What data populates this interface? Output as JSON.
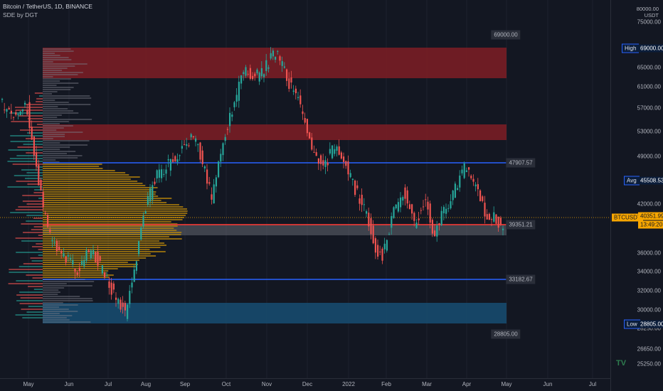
{
  "header": {
    "symbol_line": "Bitcoin / TetherUS, 1D, BINANCE",
    "indicator_line": "SDE by DGT"
  },
  "price_axis": {
    "currency": "USDT",
    "top_value": "80000.00",
    "ticks": [
      {
        "value": 75000,
        "label": "75000.00"
      },
      {
        "value": 65000,
        "label": "65000.00"
      },
      {
        "value": 61000,
        "label": "61000.00"
      },
      {
        "value": 57000,
        "label": "57000.00"
      },
      {
        "value": 53000,
        "label": "53000.00"
      },
      {
        "value": 49000,
        "label": "49000.00"
      },
      {
        "value": 42000,
        "label": "42000.00"
      },
      {
        "value": 36000,
        "label": "36000.00"
      },
      {
        "value": 34000,
        "label": "34000.00"
      },
      {
        "value": 32000,
        "label": "32000.00"
      },
      {
        "value": 30000,
        "label": "30000.00"
      },
      {
        "value": 28250,
        "label": "28250.00"
      },
      {
        "value": 26650,
        "label": "26650.00"
      },
      {
        "value": 25250,
        "label": "25250.00"
      }
    ],
    "high": {
      "label": "High",
      "value": "69000.00"
    },
    "avg": {
      "label": "Avg",
      "value": "45508.53"
    },
    "low": {
      "label": "Low",
      "value": "28805.00"
    },
    "symbol_tag": {
      "label": "BTCUSDT",
      "price": "40351.99",
      "countdown": "13:49:20"
    }
  },
  "time_axis": {
    "labels": [
      "May",
      "Jun",
      "Jul",
      "Aug",
      "Sep",
      "Oct",
      "Nov",
      "Dec",
      "2022",
      "Feb",
      "Mar",
      "Apr",
      "May",
      "Jun",
      "Jul"
    ]
  },
  "chart_labels": {
    "high_label": "69000.00",
    "upper_line_label": "47907.57",
    "current_label": "39351.21",
    "lower_line_label": "33182.67",
    "low_label": "28805.00"
  },
  "colors": {
    "background": "#131722",
    "up": "#26a69a",
    "down": "#ef5350",
    "supply_zone": "#7f1d25",
    "demand_zone": "#174a6e",
    "level_line": "#2962ff",
    "poc_line": "#e53935",
    "profile_value_area": "#b8860b",
    "profile_outside": "#787b86",
    "symbol_tag": "#f7a600"
  },
  "logo": "TV"
}
